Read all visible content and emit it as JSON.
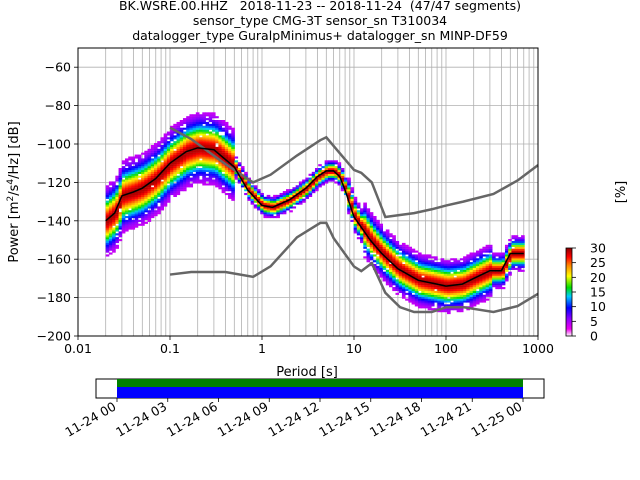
{
  "chart_data": [
    {
      "type": "heatmap",
      "title_lines": [
        "BK.WSRE.00.HHZ   2018-11-23 -- 2018-11-24  (47/47 segments)",
        "sensor_type CMG-3T sensor_sn T310034",
        "datalogger_type GuralpMinimus+ datalogger_sn MINP-DF59"
      ],
      "xlabel": "Period [s]",
      "ylabel_main": "Power [m",
      "ylabel_sup1": "2",
      "ylabel_mid": "/s",
      "ylabel_sup2": "4",
      "ylabel_end": "/Hz] [dB]",
      "xscale": "log",
      "xlim": [
        0.01,
        1000
      ],
      "ylim": [
        -200,
        -50
      ],
      "xticks": [
        0.01,
        0.1,
        1,
        10,
        100,
        1000
      ],
      "xtick_labels": [
        "0.01",
        "0.1",
        "1",
        "10",
        "100",
        "1000"
      ],
      "yticks": [
        -200,
        -180,
        -160,
        -140,
        -120,
        -100,
        -80,
        -60
      ],
      "ytick_labels": [
        "−200",
        "−180",
        "−160",
        "−140",
        "−120",
        "−100",
        "−80",
        "−60"
      ],
      "grid": true,
      "mode_line": [
        [
          0.02,
          -140
        ],
        [
          0.025,
          -136
        ],
        [
          0.03,
          -127
        ],
        [
          0.04,
          -125
        ],
        [
          0.05,
          -123
        ],
        [
          0.07,
          -118
        ],
        [
          0.1,
          -110
        ],
        [
          0.15,
          -104
        ],
        [
          0.2,
          -102
        ],
        [
          0.3,
          -103
        ],
        [
          0.5,
          -112
        ],
        [
          0.7,
          -124
        ],
        [
          1,
          -132
        ],
        [
          1.3,
          -133
        ],
        [
          2,
          -129
        ],
        [
          3,
          -123
        ],
        [
          4,
          -117
        ],
        [
          5,
          -114
        ],
        [
          6,
          -114
        ],
        [
          7,
          -117
        ],
        [
          8,
          -124
        ],
        [
          10,
          -138
        ],
        [
          15,
          -150
        ],
        [
          20,
          -157
        ],
        [
          30,
          -165
        ],
        [
          50,
          -171
        ],
        [
          80,
          -173
        ],
        [
          100,
          -174
        ],
        [
          150,
          -173
        ],
        [
          200,
          -170
        ],
        [
          300,
          -166
        ],
        [
          400,
          -166
        ],
        [
          500,
          -157
        ],
        [
          700,
          -157
        ]
      ],
      "nhnm": [
        [
          0.1,
          -91.5
        ],
        [
          0.17,
          -97.4
        ],
        [
          0.4,
          -110.5
        ],
        [
          0.8,
          -120
        ],
        [
          1.24,
          -116
        ],
        [
          2.4,
          -106
        ],
        [
          4.3,
          -98
        ],
        [
          5,
          -96.5
        ],
        [
          6,
          -101
        ],
        [
          10,
          -113.5
        ],
        [
          12,
          -115
        ],
        [
          15.6,
          -120
        ],
        [
          21.9,
          -138
        ],
        [
          31.6,
          -137
        ],
        [
          45,
          -136
        ],
        [
          70,
          -134
        ],
        [
          101,
          -132
        ],
        [
          154,
          -130
        ],
        [
          328,
          -126
        ],
        [
          600,
          -119
        ],
        [
          1000,
          -111
        ]
      ],
      "nlnm": [
        [
          0.1,
          -168
        ],
        [
          0.17,
          -166.7
        ],
        [
          0.4,
          -166.7
        ],
        [
          0.8,
          -169.2
        ],
        [
          1.24,
          -163.7
        ],
        [
          2.4,
          -148.6
        ],
        [
          4.3,
          -141.1
        ],
        [
          5,
          -141.1
        ],
        [
          6,
          -149
        ],
        [
          10,
          -163.8
        ],
        [
          12,
          -166.2
        ],
        [
          15.6,
          -162.1
        ],
        [
          21.9,
          -177.5
        ],
        [
          31.6,
          -185
        ],
        [
          45,
          -187.5
        ],
        [
          70,
          -187.5
        ],
        [
          101,
          -185
        ],
        [
          154,
          -185
        ],
        [
          328,
          -187.5
        ],
        [
          600,
          -184.4
        ],
        [
          1000,
          -178
        ]
      ],
      "colorbar": {
        "label": "[%]",
        "range": [
          0,
          30
        ],
        "ticks": [
          0,
          5,
          10,
          15,
          20,
          25,
          30
        ],
        "tick_labels": [
          "0",
          "5",
          "10",
          "15",
          "20",
          "25",
          "30"
        ],
        "colormap": "pqlx"
      }
    },
    {
      "type": "timeline",
      "ticks": [
        "11-24 00",
        "11-24 03",
        "11-24 06",
        "11-24 09",
        "11-24 12",
        "11-24 15",
        "11-24 18",
        "11-24 21",
        "11-25 00"
      ],
      "bars": [
        {
          "name": "green",
          "color": "#008000"
        },
        {
          "name": "blue",
          "color": "#0000ff"
        }
      ]
    }
  ]
}
